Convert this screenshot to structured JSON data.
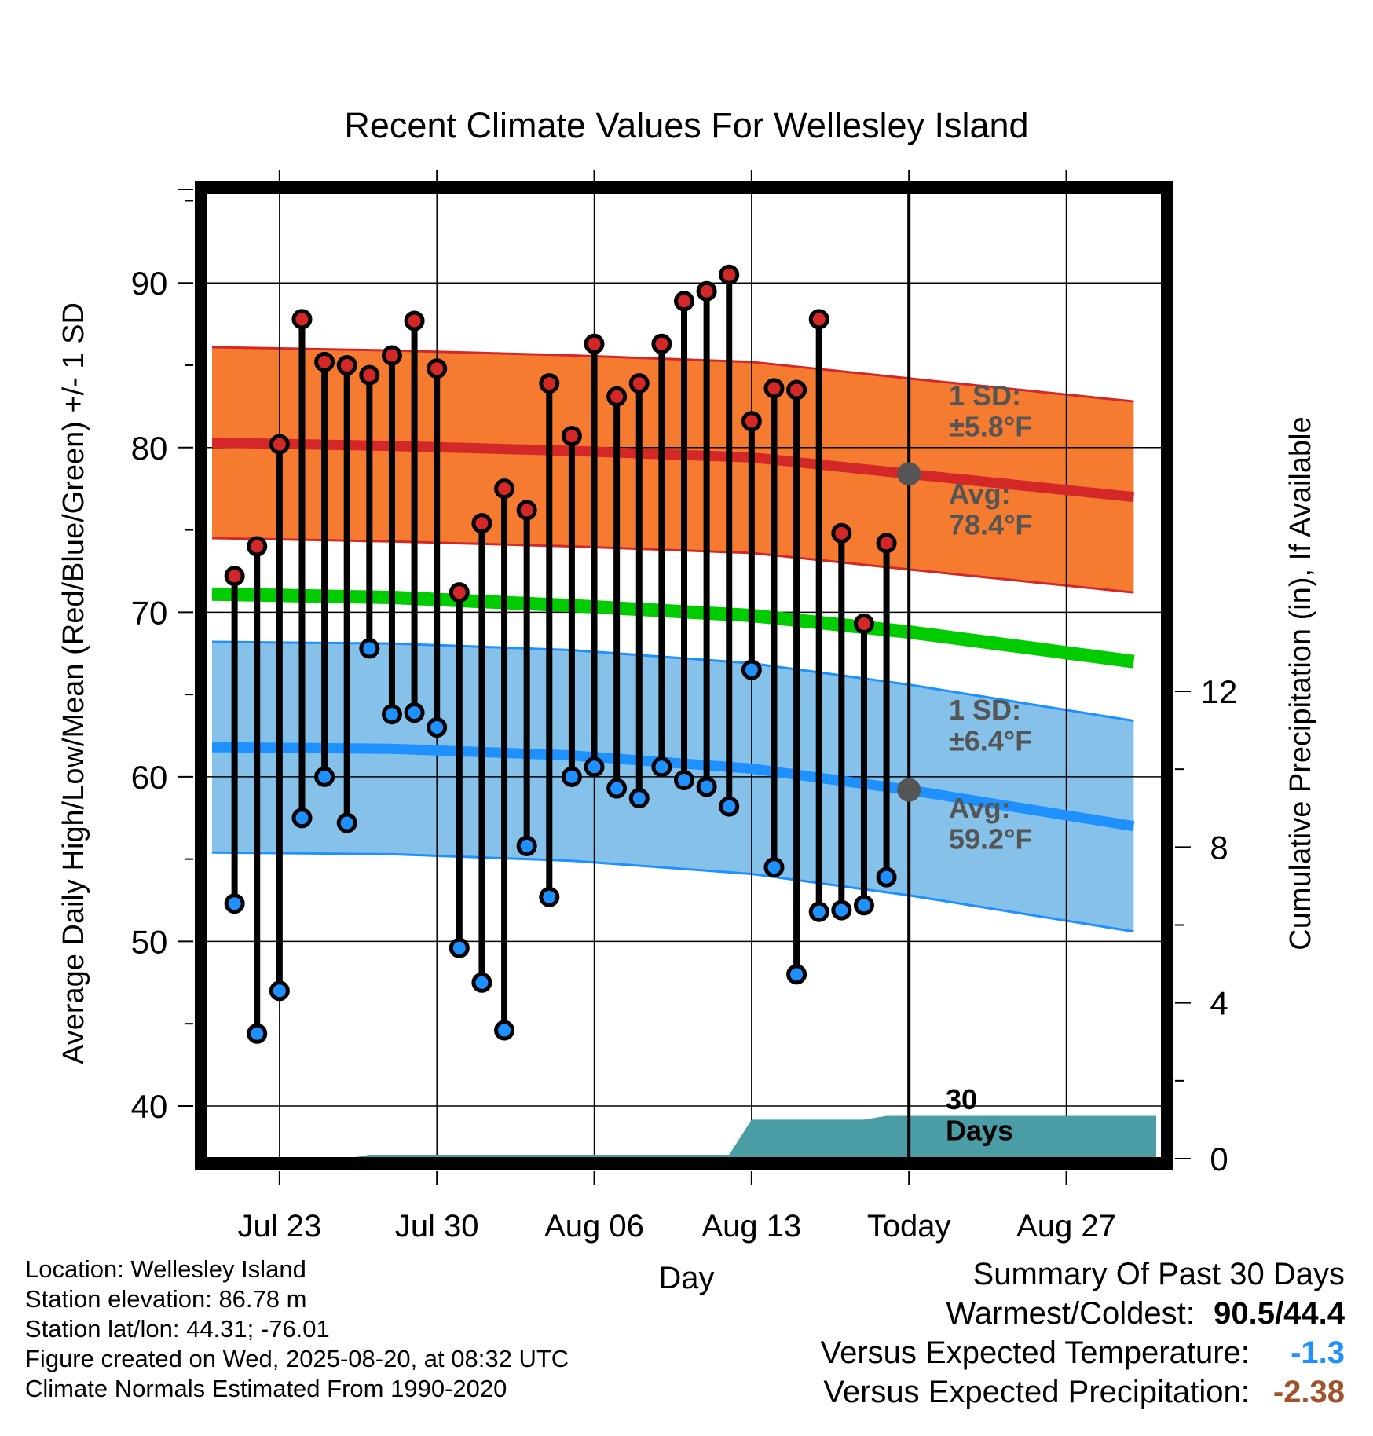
{
  "chart_data": {
    "type": "line",
    "title": "Recent Climate Values For Wellesley Island",
    "xlabel": "Day",
    "ylabel_left": "Average Daily High/Low/Mean (Red/Blue/Green) +/- 1 SD",
    "ylabel_right": "Cumulative Precipitation (in), If Available",
    "x_ticks": [
      "Jul 23",
      "Jul 30",
      "Aug 06",
      "Aug 13",
      "Today",
      "Aug 27"
    ],
    "y_left_ticks": [
      40,
      50,
      60,
      70,
      80,
      90
    ],
    "y_left_range": [
      36.8,
      95.5
    ],
    "y_right_ticks": [
      0,
      4,
      8,
      12
    ],
    "y_right_range": [
      0,
      24
    ],
    "grid": true,
    "today_marker": "30 Days",
    "days_axis": {
      "first": "2025-07-20",
      "last": "2025-08-31",
      "today": "2025-08-20"
    },
    "normal_high_avg": [
      80.3,
      80.1,
      79.8,
      79.4,
      78.4,
      77.0
    ],
    "normal_low_avg": [
      61.8,
      61.7,
      61.3,
      60.5,
      59.2,
      57.0
    ],
    "normal_mean_avg": [
      71.1,
      70.9,
      70.4,
      69.8,
      68.8,
      67.0
    ],
    "sd_high_label": "1 SD:\n±5.8°F",
    "sd_low_label": "1 SD:\n±6.4°F",
    "avg_high_label": "Avg:\n78.4°F",
    "avg_low_label": "Avg:\n59.2°F",
    "sd_high": 5.8,
    "sd_low": 6.4,
    "observed": {
      "dates": [
        "2025-07-21",
        "2025-07-22",
        "2025-07-23",
        "2025-07-24",
        "2025-07-25",
        "2025-07-26",
        "2025-07-27",
        "2025-07-28",
        "2025-07-29",
        "2025-07-30",
        "2025-07-31",
        "2025-08-01",
        "2025-08-02",
        "2025-08-03",
        "2025-08-04",
        "2025-08-05",
        "2025-08-06",
        "2025-08-07",
        "2025-08-08",
        "2025-08-09",
        "2025-08-10",
        "2025-08-11",
        "2025-08-12",
        "2025-08-13",
        "2025-08-14",
        "2025-08-15",
        "2025-08-16",
        "2025-08-17",
        "2025-08-18",
        "2025-08-19"
      ],
      "highs": [
        72.2,
        74.0,
        80.2,
        87.8,
        85.2,
        85.0,
        84.4,
        85.6,
        87.7,
        84.8,
        71.2,
        75.4,
        77.5,
        76.2,
        83.9,
        80.7,
        86.3,
        83.1,
        83.9,
        86.3,
        88.9,
        89.5,
        90.5,
        81.6,
        83.6,
        83.5,
        87.8,
        74.8,
        69.3,
        74.2
      ],
      "lows": [
        52.3,
        44.4,
        47.0,
        57.5,
        60.0,
        57.2,
        67.8,
        63.8,
        63.9,
        63.0,
        49.6,
        47.5,
        44.6,
        55.8,
        52.7,
        60.0,
        60.6,
        59.3,
        58.7,
        60.6,
        59.8,
        59.4,
        58.2,
        66.5,
        54.5,
        48.0,
        51.8,
        51.9,
        52.2,
        53.9
      ]
    },
    "precipitation": {
      "dates": [
        "2025-07-20",
        "2025-07-26",
        "2025-07-27",
        "2025-08-12",
        "2025-08-13",
        "2025-08-18",
        "2025-08-19",
        "2025-08-20",
        "2025-08-31"
      ],
      "cumulative": [
        0,
        0,
        0.1,
        0.1,
        1.0,
        1.0,
        1.1,
        1.1,
        1.1
      ]
    }
  },
  "info": {
    "location": "Location: Wellesley Island",
    "elevation": "Station elevation: 86.78 m",
    "latlon": "Station lat/lon: 44.31; -76.01",
    "created": "Figure created on Wed, 2025-08-20, at 08:32 UTC",
    "normals": "Climate Normals Estimated From 1990-2020"
  },
  "summary": {
    "title": "Summary Of Past 30 Days",
    "warmest_label": "Warmest/Coldest:",
    "warmest_value": "90.5/44.4",
    "temp_label": "Versus Expected Temperature:",
    "temp_value": "-1.3",
    "temp_color": "#1e90ff",
    "precip_label": "Versus Expected Precipitation:",
    "precip_value": "-2.38",
    "precip_color": "#a0522d"
  },
  "colors": {
    "high_band": "#f47b30",
    "high_line": "#d42828",
    "low_band": "#85c1e9",
    "low_line": "#1e90ff",
    "mean_line": "#00cc00",
    "precip_fill": "#4a9da5",
    "avg_marker": "#555555"
  }
}
